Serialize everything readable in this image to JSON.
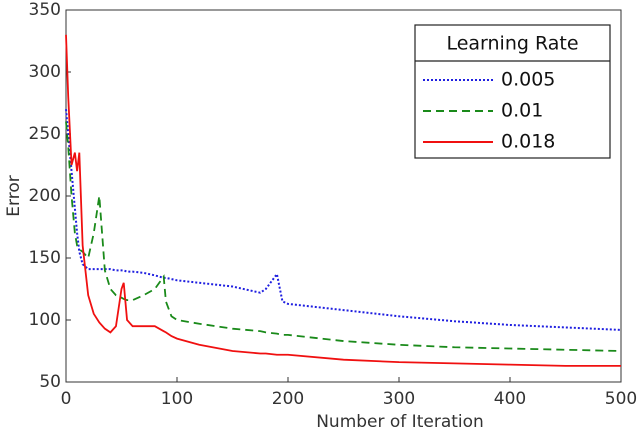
{
  "chart_data": {
    "type": "line",
    "x_label": "Number of Iteration",
    "y_label": "Error",
    "legend_title": "Learning Rate",
    "legend_position": "upper right",
    "x": [
      0,
      2,
      5,
      8,
      10,
      12,
      15,
      20,
      25,
      30,
      35,
      40,
      45,
      50,
      52,
      55,
      60,
      70,
      80,
      88,
      90,
      95,
      100,
      120,
      150,
      175,
      180,
      190,
      195,
      200,
      250,
      300,
      350,
      400,
      450,
      500
    ],
    "series": [
      {
        "name": "0.005",
        "color": "#1f1fe0",
        "style": "dotted",
        "values": [
          270,
          250,
          220,
          190,
          170,
          155,
          145,
          141,
          141,
          141,
          141,
          141,
          140,
          140,
          140,
          139,
          139,
          138,
          136,
          134,
          134,
          133,
          132,
          130,
          127,
          122,
          125,
          137,
          115,
          113,
          108,
          103,
          99,
          96,
          94,
          92
        ]
      },
      {
        "name": "0.01",
        "color": "#1a8a1a",
        "style": "dashed",
        "values": [
          260,
          240,
          200,
          170,
          160,
          157,
          155,
          150,
          170,
          200,
          140,
          125,
          120,
          118,
          117,
          116,
          116,
          120,
          125,
          135,
          115,
          103,
          100,
          97,
          93,
          91,
          90,
          89,
          88,
          88,
          83,
          80,
          78,
          77,
          76,
          75
        ]
      },
      {
        "name": "0.018",
        "color": "#f01010",
        "style": "solid",
        "values": [
          330,
          280,
          225,
          235,
          220,
          235,
          160,
          120,
          105,
          98,
          93,
          90,
          95,
          125,
          130,
          100,
          95,
          95,
          95,
          91,
          90,
          87,
          85,
          80,
          75,
          73,
          73,
          72,
          72,
          72,
          68,
          66,
          65,
          64,
          63,
          63
        ]
      }
    ],
    "xlim": [
      0,
      500
    ],
    "xticks": [
      0,
      100,
      200,
      300,
      400,
      500
    ],
    "ylim": [
      50,
      350
    ],
    "yticks": [
      50,
      100,
      150,
      200,
      250,
      300,
      350
    ],
    "grid": false
  }
}
